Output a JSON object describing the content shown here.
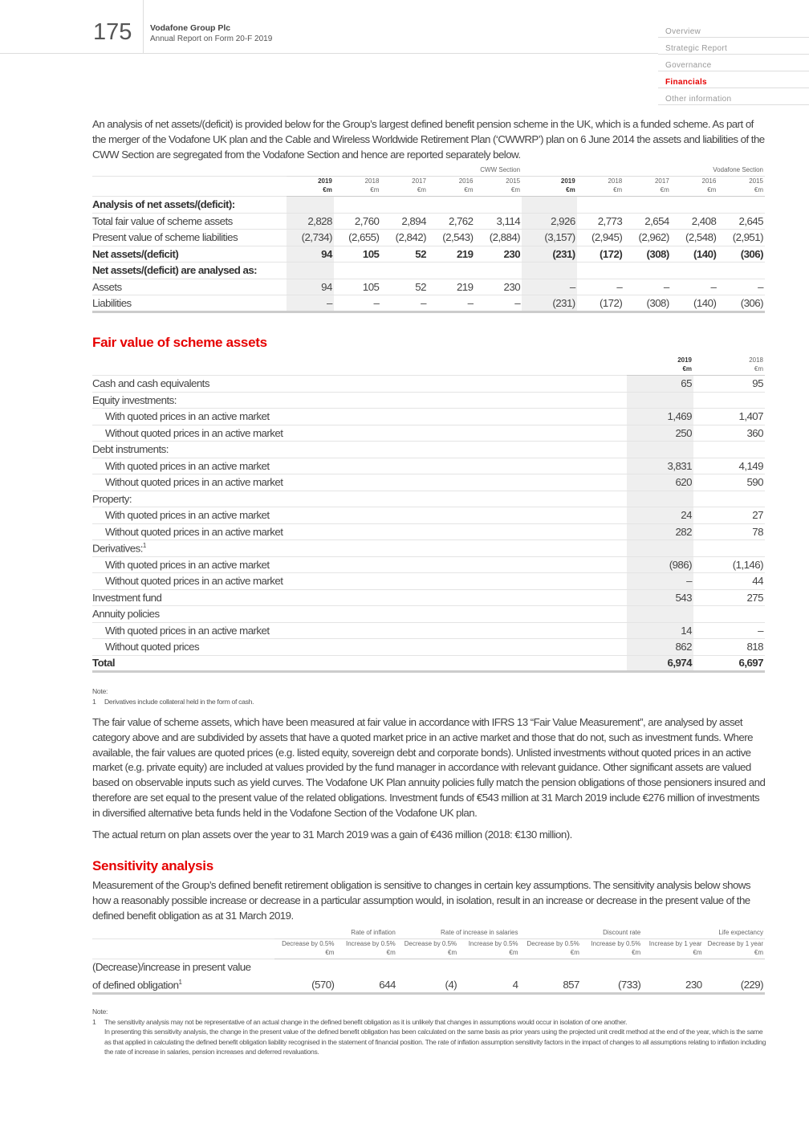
{
  "header": {
    "page_number": "175",
    "company": "Vodafone Group Plc",
    "subtitle": "Annual Report on Form 20-F 2019"
  },
  "nav": [
    {
      "label": "Overview"
    },
    {
      "label": "Strategic Report"
    },
    {
      "label": "Governance"
    },
    {
      "label": "Financials",
      "active": true
    },
    {
      "label": "Other information"
    }
  ],
  "accent_color": "#e60000",
  "intro": "An analysis of net assets/(deficit) is provided below for the Group’s largest defined benefit pension scheme in the UK, which is a funded scheme. As part of the merger of the Vodafone UK plan and the Cable and Wireless Worldwide Retirement Plan (‘CWWRP’) plan on 6 June 2014 the assets and liabilities of the CWW Section are segregated from the Vodafone Section and hence are reported separately below.",
  "net_assets_table": {
    "groups": [
      "CWW Section",
      "Vodafone Section"
    ],
    "years": [
      "2019",
      "2018",
      "2017",
      "2016",
      "2015",
      "2019",
      "2018",
      "2017",
      "2016",
      "2015"
    ],
    "unit": "€m",
    "rows": [
      {
        "label": "Analysis of net assets/(deficit):",
        "heading": true,
        "values": []
      },
      {
        "label": "Total fair value of scheme assets",
        "values": [
          "2,828",
          "2,760",
          "2,894",
          "2,762",
          "3,114",
          "2,926",
          "2,773",
          "2,654",
          "2,408",
          "2,645"
        ]
      },
      {
        "label": "Present value of scheme liabilities",
        "values": [
          "(2,734)",
          "(2,655)",
          "(2,842)",
          "(2,543)",
          "(2,884)",
          "(3,157)",
          "(2,945)",
          "(2,962)",
          "(2,548)",
          "(2,951)"
        ]
      },
      {
        "label": "Net assets/(deficit)",
        "bold": true,
        "values": [
          "94",
          "105",
          "52",
          "219",
          "230",
          "(231)",
          "(172)",
          "(308)",
          "(140)",
          "(306)"
        ]
      },
      {
        "label": "Net assets/(deficit) are analysed as:",
        "heading": true,
        "values": []
      },
      {
        "label": "Assets",
        "values": [
          "94",
          "105",
          "52",
          "219",
          "230",
          "–",
          "–",
          "–",
          "–",
          "–"
        ]
      },
      {
        "label": "Liabilities",
        "values": [
          "–",
          "–",
          "–",
          "–",
          "–",
          "(231)",
          "(172)",
          "(308)",
          "(140)",
          "(306)"
        ]
      }
    ]
  },
  "fair_value": {
    "title": "Fair value of scheme assets",
    "years": [
      "2019",
      "2018"
    ],
    "unit": "€m",
    "rows": [
      {
        "label": "Cash and cash equivalents",
        "values": [
          "65",
          "95"
        ]
      },
      {
        "label": "Equity investments:",
        "values": [
          "",
          ""
        ]
      },
      {
        "label": "With quoted prices in an active market",
        "indent": true,
        "values": [
          "1,469",
          "1,407"
        ]
      },
      {
        "label": "Without quoted prices in an active market",
        "indent": true,
        "values": [
          "250",
          "360"
        ]
      },
      {
        "label": "Debt instruments:",
        "values": [
          "",
          ""
        ]
      },
      {
        "label": "With quoted prices in an active market",
        "indent": true,
        "values": [
          "3,831",
          "4,149"
        ]
      },
      {
        "label": "Without quoted prices in an active market",
        "indent": true,
        "values": [
          "620",
          "590"
        ]
      },
      {
        "label": "Property:",
        "values": [
          "",
          ""
        ]
      },
      {
        "label": "With quoted prices in an active market",
        "indent": true,
        "values": [
          "24",
          "27"
        ]
      },
      {
        "label": "Without quoted prices in an active market",
        "indent": true,
        "values": [
          "282",
          "78"
        ]
      },
      {
        "label": "Derivatives:",
        "sup": "1",
        "values": [
          "",
          ""
        ]
      },
      {
        "label": "With quoted prices in an active market",
        "indent": true,
        "values": [
          "(986)",
          "(1,146)"
        ]
      },
      {
        "label": "Without quoted prices in an active market",
        "indent": true,
        "values": [
          "–",
          "44"
        ]
      },
      {
        "label": "Investment fund",
        "values": [
          "543",
          "275"
        ]
      },
      {
        "label": "Annuity policies",
        "values": [
          "",
          ""
        ]
      },
      {
        "label": "With quoted prices in an active market",
        "indent": true,
        "values": [
          "14",
          "–"
        ]
      },
      {
        "label": "Without quoted prices",
        "indent": true,
        "values": [
          "862",
          "818"
        ]
      },
      {
        "label": "Total",
        "bold": true,
        "values": [
          "6,974",
          "6,697"
        ]
      }
    ],
    "note_label": "Note:",
    "note": "Derivatives include collateral held in the form of cash."
  },
  "para1": "The fair value of scheme assets, which have been measured at fair value in accordance with IFRS 13 “Fair Value Measurement”, are analysed by asset category above and are subdivided by assets that have a quoted market price in an active market and those that do not, such as investment funds. Where available, the fair values are quoted prices (e.g. listed equity, sovereign debt and corporate bonds). Unlisted investments without quoted prices in an active market (e.g. private equity) are included at values provided by the fund manager in accordance with relevant guidance. Other significant assets are valued based on observable inputs such as yield curves. The Vodafone UK Plan annuity policies fully match the pension obligations of those pensioners insured and therefore are set equal to the present value of the related obligations. Investment funds of €543 million at 31 March 2019 include €276 million of investments in diversified alternative beta funds held in the Vodafone Section of the Vodafone UK plan.",
  "para2": "The actual return on plan assets over the year to 31 March 2019 was a gain of €436 million (2018: €130 million).",
  "sensitivity": {
    "title": "Sensitivity analysis",
    "intro": "Measurement of the Group’s defined benefit retirement obligation is sensitive to changes in certain key assumptions. The sensitivity analysis below shows how a reasonably possible increase or decrease in a particular assumption would, in isolation, result in an increase or decrease in the present value of the defined benefit obligation as at 31 March 2019.",
    "groups": [
      "Rate of inflation",
      "Rate of increase in salaries",
      "Discount rate",
      "Life expectancy"
    ],
    "columns": [
      "Decrease by 0.5%",
      "Increase by 0.5%",
      "Decrease by 0.5%",
      "Increase by 0.5%",
      "Decrease by 0.5%",
      "Increase by 0.5%",
      "Increase by 1 year",
      "Decrease by 1 year"
    ],
    "unit": "€m",
    "row_label_1": "(Decrease)/increase in present value",
    "row_label_2": "of defined obligation",
    "row_sup": "1",
    "values": [
      "(570)",
      "644",
      "(4)",
      "4",
      "857",
      "(733)",
      "230",
      "(229)"
    ],
    "note_label": "Note:",
    "note_1": "The sensitivity analysis may not be representative of an actual change in the defined benefit obligation as it is unlikely that changes in assumptions would occur in isolation of one another.",
    "note_2": "In presenting this sensitivity analysis, the change in the present value of the defined benefit obligation has been calculated on the same basis as prior years using the projected unit credit method at the end of the year, which is the same as that applied in calculating the defined benefit obligation liability recognised in the statement of financial position. The rate of inflation assumption sensitivity factors in the impact of changes to all assumptions relating to inflation including the rate of increase in salaries, pension increases and deferred revaluations."
  }
}
